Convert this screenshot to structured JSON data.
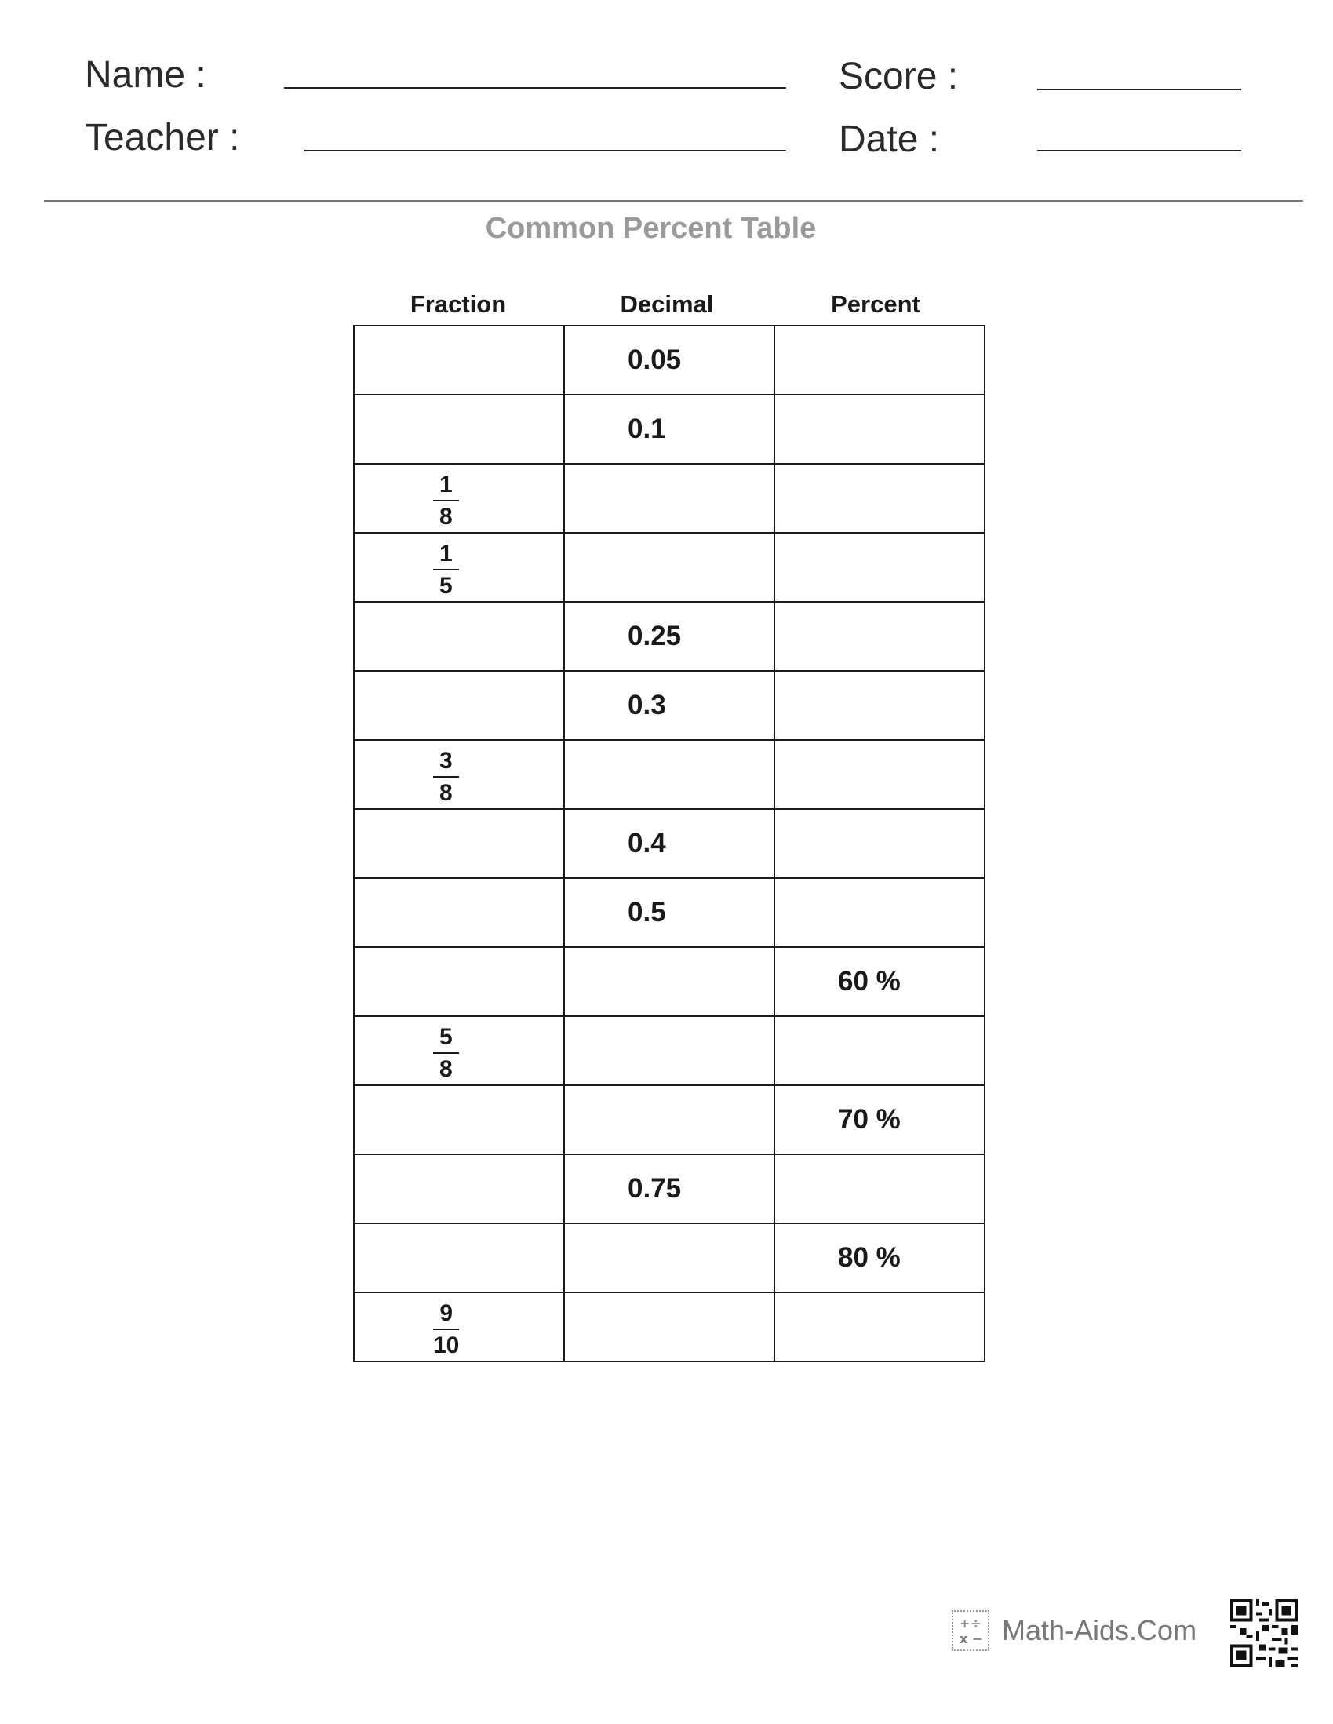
{
  "header": {
    "name_label": "Name :",
    "teacher_label": "Teacher :",
    "score_label": "Score :",
    "date_label": "Date :"
  },
  "title": "Common Percent Table",
  "table": {
    "columns": [
      "Fraction",
      "Decimal",
      "Percent"
    ],
    "rows": [
      {
        "fraction": null,
        "decimal": "0.05",
        "percent": ""
      },
      {
        "fraction": null,
        "decimal": "0.1",
        "percent": ""
      },
      {
        "fraction": {
          "num": "1",
          "den": "8"
        },
        "decimal": "",
        "percent": ""
      },
      {
        "fraction": {
          "num": "1",
          "den": "5"
        },
        "decimal": "",
        "percent": ""
      },
      {
        "fraction": null,
        "decimal": "0.25",
        "percent": ""
      },
      {
        "fraction": null,
        "decimal": "0.3",
        "percent": ""
      },
      {
        "fraction": {
          "num": "3",
          "den": "8"
        },
        "decimal": "",
        "percent": ""
      },
      {
        "fraction": null,
        "decimal": "0.4",
        "percent": ""
      },
      {
        "fraction": null,
        "decimal": "0.5",
        "percent": ""
      },
      {
        "fraction": null,
        "decimal": "",
        "percent": "60 %"
      },
      {
        "fraction": {
          "num": "5",
          "den": "8"
        },
        "decimal": "",
        "percent": ""
      },
      {
        "fraction": null,
        "decimal": "",
        "percent": "70 %"
      },
      {
        "fraction": null,
        "decimal": "0.75",
        "percent": ""
      },
      {
        "fraction": null,
        "decimal": "",
        "percent": "80 %"
      },
      {
        "fraction": {
          "num": "9",
          "den": "10"
        },
        "decimal": "",
        "percent": ""
      }
    ]
  },
  "footer": {
    "brand": "Math-Aids.Com",
    "brand_icon": "math-aids-logo-icon",
    "qr_icon": "qr-code-icon"
  }
}
